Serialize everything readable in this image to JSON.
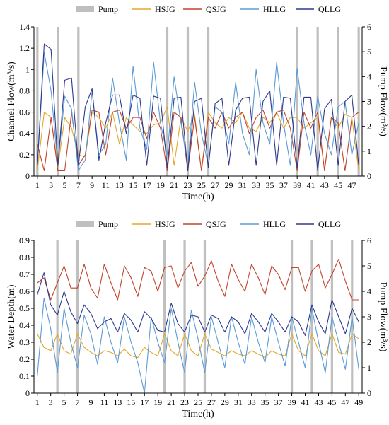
{
  "colors": {
    "Pump": "#bfbfbf",
    "HSJG": "#e3a82b",
    "QSJG": "#c0442b",
    "HLLG": "#5b9bd5",
    "QLLG": "#2e3a8c"
  },
  "chart_data": [
    {
      "type": "line",
      "legend": [
        "Pump",
        "HSJG",
        "QSJG",
        "HLLG",
        "QLLG"
      ],
      "xlabel": "Time(h)",
      "ylabel": "Channel Flow(m³/s)",
      "y2label": "Pump Flow(m³/s)",
      "xlim": [
        0.5,
        48.5
      ],
      "ylim": [
        0,
        1.4
      ],
      "y2lim": [
        0,
        6
      ],
      "xticks": [
        1,
        3,
        5,
        7,
        9,
        11,
        13,
        15,
        17,
        19,
        21,
        23,
        25,
        27,
        29,
        31,
        33,
        35,
        37,
        39,
        41,
        43,
        45,
        47
      ],
      "yticks": [
        "0",
        "0.2",
        "0.4",
        "0.6",
        "0.8",
        "1",
        "1.2",
        "1.4"
      ],
      "y2ticks": [
        "0",
        "1",
        "2",
        "3",
        "4",
        "5",
        "6"
      ],
      "pump_hours": [
        1,
        4,
        7,
        20,
        23,
        26,
        39,
        42,
        45,
        48
      ],
      "pump_value": 6,
      "series": [
        {
          "name": "HSJG",
          "values": [
            0.05,
            0.6,
            0.55,
            0.08,
            0.55,
            0.45,
            0.2,
            0.18,
            0.6,
            0.55,
            0.45,
            0.6,
            0.3,
            0.55,
            0.48,
            0.42,
            0.4,
            0.48,
            0.5,
            0.65,
            0.1,
            0.55,
            0.42,
            0.58,
            0.05,
            0.6,
            0.5,
            0.45,
            0.55,
            0.5,
            0.6,
            0.45,
            0.42,
            0.55,
            0.5,
            0.6,
            0.45,
            0.55,
            0.55,
            0.45,
            0.5,
            0.55,
            0.05,
            0.55,
            0.45,
            0.58,
            0.55,
            0.05
          ]
        },
        {
          "name": "QSJG",
          "values": [
            0.3,
            0.05,
            0.55,
            0.05,
            0.05,
            0.6,
            0.1,
            0.2,
            0.62,
            0.6,
            0.2,
            0.6,
            0.62,
            0.45,
            0.55,
            0.55,
            0.35,
            0.6,
            0.45,
            0.05,
            0.6,
            0.55,
            0.05,
            0.55,
            0.05,
            0.55,
            0.45,
            0.6,
            0.45,
            0.55,
            0.6,
            0.4,
            0.55,
            0.62,
            0.45,
            0.6,
            0.62,
            0.45,
            0.05,
            0.6,
            0.45,
            0.6,
            0.05,
            0.55,
            0.5,
            0.05,
            0.55,
            0.6
          ]
        },
        {
          "name": "HLLG",
          "values": [
            0.1,
            1.16,
            0.8,
            0.1,
            0.75,
            0.63,
            0.05,
            0.15,
            0.8,
            0.2,
            0.3,
            0.92,
            0.5,
            0.15,
            1.03,
            0.45,
            0.25,
            1.07,
            0.5,
            0.2,
            0.93,
            0.5,
            0.1,
            0.88,
            0.4,
            0.1,
            0.65,
            0.6,
            0.3,
            0.88,
            0.4,
            0.2,
            1.0,
            0.5,
            0.3,
            1.07,
            0.5,
            0.1,
            1.01,
            0.5,
            0.2,
            0.75,
            0.4,
            0.2,
            0.65,
            0.7,
            0.2,
            0.5
          ]
        },
        {
          "name": "QLLG",
          "values": [
            0.1,
            1.24,
            1.19,
            0.1,
            0.9,
            0.92,
            0.1,
            0.65,
            0.82,
            0.15,
            0.5,
            0.76,
            0.76,
            0.4,
            0.76,
            0.73,
            0.1,
            0.75,
            0.73,
            0.08,
            0.73,
            0.74,
            0.05,
            0.7,
            0.73,
            0.08,
            0.68,
            0.73,
            0.1,
            0.62,
            0.73,
            0.74,
            0.1,
            0.7,
            0.8,
            0.1,
            0.74,
            0.73,
            0.08,
            0.74,
            0.74,
            0.05,
            0.63,
            0.72,
            0.1,
            0.7,
            0.76,
            0.1
          ]
        }
      ]
    },
    {
      "type": "line",
      "legend": [
        "Pump",
        "HSJG",
        "QSJG",
        "HLLG",
        "QLLG"
      ],
      "xlabel": "Time(h)",
      "ylabel": "Water Depth(m)",
      "y2label": "Pump Flow(m³/s)",
      "xlim": [
        0.5,
        49.5
      ],
      "ylim": [
        0,
        0.9
      ],
      "y2lim": [
        0,
        6
      ],
      "xticks": [
        1,
        3,
        5,
        7,
        9,
        11,
        13,
        15,
        17,
        19,
        21,
        23,
        25,
        27,
        29,
        31,
        33,
        35,
        37,
        39,
        41,
        43,
        45,
        47,
        49
      ],
      "yticks": [
        "0",
        "0.1",
        "0.2",
        "0.3",
        "0.4",
        "0.5",
        "0.6",
        "0.7",
        "0.8",
        "0.9"
      ],
      "y2ticks": [
        "0",
        "1",
        "2",
        "3",
        "4",
        "5",
        "6"
      ],
      "pump_hours": [
        4,
        7,
        20,
        23,
        26,
        39,
        42,
        45,
        48
      ],
      "pump_value": 6,
      "series": [
        {
          "name": "HSJG",
          "values": [
            0.35,
            0.27,
            0.25,
            0.35,
            0.25,
            0.23,
            0.35,
            0.27,
            0.24,
            0.22,
            0.25,
            0.24,
            0.22,
            0.26,
            0.22,
            0.21,
            0.27,
            0.24,
            0.22,
            0.35,
            0.25,
            0.22,
            0.35,
            0.25,
            0.22,
            0.35,
            0.26,
            0.24,
            0.22,
            0.25,
            0.23,
            0.22,
            0.25,
            0.23,
            0.21,
            0.25,
            0.23,
            0.22,
            0.35,
            0.25,
            0.22,
            0.35,
            0.25,
            0.22,
            0.35,
            0.24,
            0.23,
            0.35,
            0.32
          ]
        },
        {
          "name": "QSJG",
          "values": [
            0.65,
            0.68,
            0.55,
            0.65,
            0.75,
            0.62,
            0.62,
            0.76,
            0.62,
            0.56,
            0.76,
            0.65,
            0.55,
            0.75,
            0.68,
            0.57,
            0.74,
            0.72,
            0.6,
            0.74,
            0.75,
            0.62,
            0.72,
            0.77,
            0.63,
            0.69,
            0.78,
            0.66,
            0.57,
            0.76,
            0.67,
            0.6,
            0.76,
            0.68,
            0.58,
            0.75,
            0.7,
            0.61,
            0.74,
            0.74,
            0.6,
            0.72,
            0.76,
            0.62,
            0.7,
            0.79,
            0.66,
            0.55,
            0.55
          ]
        },
        {
          "name": "HLLG",
          "values": [
            0.1,
            0.56,
            0.38,
            0.12,
            0.5,
            0.3,
            0.15,
            0.46,
            0.35,
            0.17,
            0.45,
            0.3,
            0.18,
            0.45,
            0.3,
            0.18,
            0.0,
            0.45,
            0.3,
            0.18,
            0.5,
            0.3,
            0.12,
            0.49,
            0.32,
            0.12,
            0.45,
            0.3,
            0.15,
            0.45,
            0.3,
            0.17,
            0.45,
            0.3,
            0.18,
            0.45,
            0.3,
            0.16,
            0.45,
            0.3,
            0.15,
            0.5,
            0.3,
            0.12,
            0.45,
            0.3,
            0.14,
            0.45,
            0.14
          ]
        },
        {
          "name": "QLLG",
          "values": [
            0.58,
            0.71,
            0.52,
            0.46,
            0.6,
            0.48,
            0.41,
            0.52,
            0.47,
            0.38,
            0.42,
            0.44,
            0.36,
            0.47,
            0.43,
            0.36,
            0.48,
            0.44,
            0.37,
            0.36,
            0.53,
            0.41,
            0.36,
            0.46,
            0.45,
            0.36,
            0.46,
            0.44,
            0.36,
            0.45,
            0.42,
            0.35,
            0.47,
            0.42,
            0.36,
            0.47,
            0.42,
            0.36,
            0.45,
            0.42,
            0.34,
            0.52,
            0.42,
            0.35,
            0.55,
            0.45,
            0.35,
            0.5,
            0.42
          ]
        }
      ]
    }
  ]
}
